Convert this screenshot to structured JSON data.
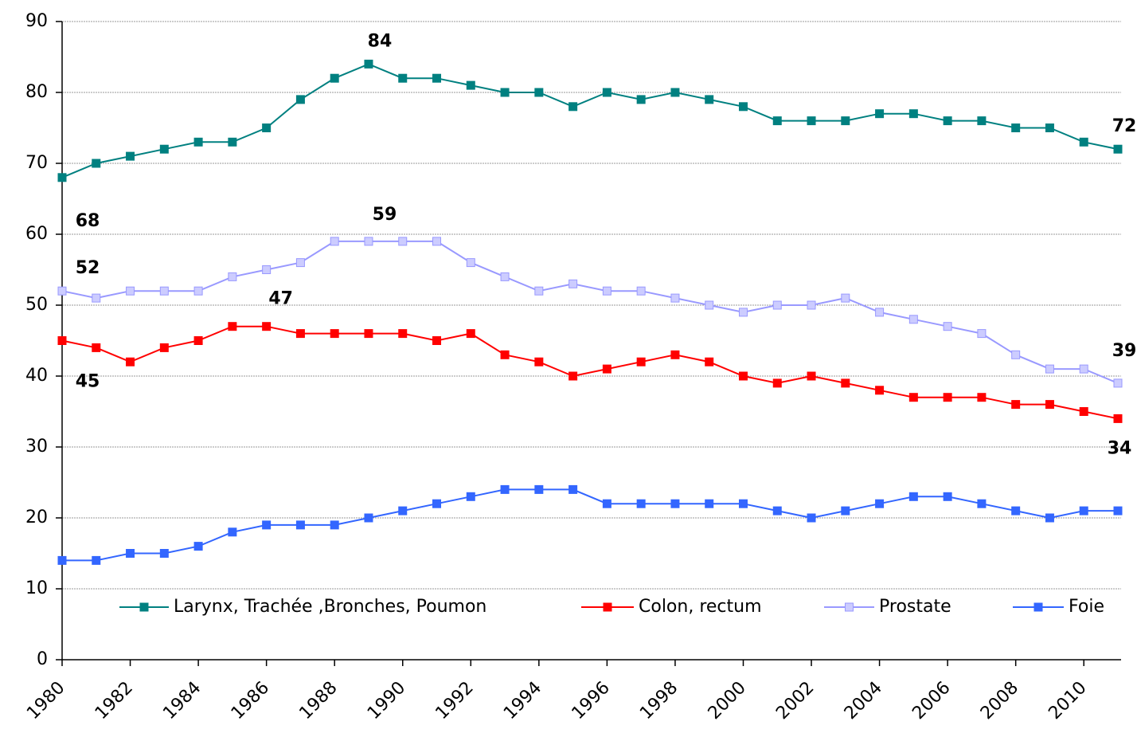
{
  "chart_data": {
    "type": "line",
    "x": [
      1980,
      1981,
      1982,
      1983,
      1984,
      1985,
      1986,
      1987,
      1988,
      1989,
      1990,
      1991,
      1992,
      1993,
      1994,
      1995,
      1996,
      1997,
      1998,
      1999,
      2000,
      2001,
      2002,
      2003,
      2004,
      2005,
      2006,
      2007,
      2008,
      2009,
      2010,
      2011
    ],
    "xlim": [
      1980,
      2011
    ],
    "xticks": [
      1980,
      1982,
      1984,
      1986,
      1988,
      1990,
      1992,
      1994,
      1996,
      1998,
      2000,
      2002,
      2004,
      2006,
      2008,
      2010
    ],
    "ylim": [
      0,
      90
    ],
    "yticks": [
      0,
      10,
      20,
      30,
      40,
      50,
      60,
      70,
      80,
      90
    ],
    "grid": true,
    "legend": "bottom",
    "series": [
      {
        "name": "Larynx, Trachée ,Bronches, Poumon",
        "color": "#008080",
        "values": [
          68,
          70,
          71,
          72,
          73,
          73,
          75,
          79,
          82,
          84,
          82,
          82,
          81,
          80,
          80,
          78,
          80,
          79,
          80,
          79,
          78,
          76,
          76,
          76,
          77,
          77,
          76,
          76,
          75,
          75,
          73,
          72
        ],
        "value_labels": [
          "68",
          null,
          null,
          null,
          null,
          null,
          null,
          null,
          null,
          "84",
          null,
          null,
          null,
          null,
          null,
          null,
          null,
          null,
          null,
          null,
          null,
          null,
          null,
          null,
          null,
          null,
          null,
          null,
          null,
          null,
          null,
          "72"
        ]
      },
      {
        "name": "Colon, rectum",
        "color": "#ff0000",
        "values": [
          45,
          44,
          42,
          44,
          45,
          47,
          47,
          46,
          46,
          46,
          46,
          45,
          46,
          43,
          42,
          40,
          41,
          42,
          43,
          42,
          40,
          39,
          40,
          39,
          38,
          37,
          37,
          37,
          36,
          36,
          35,
          34
        ],
        "value_labels": [
          "45",
          null,
          null,
          null,
          null,
          null,
          "47",
          null,
          null,
          null,
          null,
          null,
          null,
          null,
          null,
          null,
          null,
          null,
          null,
          null,
          null,
          null,
          null,
          null,
          null,
          null,
          null,
          null,
          null,
          null,
          null,
          "34"
        ]
      },
      {
        "name": "Prostate",
        "color": "#9999ff",
        "values": [
          52,
          51,
          52,
          52,
          52,
          54,
          55,
          56,
          59,
          59,
          59,
          59,
          56,
          54,
          52,
          53,
          52,
          52,
          51,
          50,
          49,
          50,
          50,
          51,
          49,
          48,
          47,
          46,
          43,
          41,
          41,
          39
        ],
        "value_labels": [
          "52",
          null,
          null,
          null,
          null,
          null,
          null,
          null,
          null,
          "59",
          null,
          null,
          null,
          null,
          null,
          null,
          null,
          null,
          null,
          null,
          null,
          null,
          null,
          null,
          null,
          null,
          null,
          null,
          null,
          null,
          null,
          "39"
        ]
      },
      {
        "name": "Foie",
        "color": "#3366ff",
        "values": [
          14,
          14,
          15,
          15,
          16,
          18,
          19,
          19,
          19,
          20,
          21,
          22,
          23,
          24,
          24,
          24,
          22,
          22,
          22,
          22,
          22,
          21,
          20,
          21,
          22,
          23,
          23,
          22,
          21,
          20,
          21,
          21
        ],
        "value_labels": [
          null,
          null,
          null,
          null,
          null,
          null,
          null,
          null,
          null,
          null,
          null,
          null,
          null,
          null,
          null,
          null,
          null,
          null,
          null,
          null,
          null,
          null,
          null,
          null,
          null,
          null,
          null,
          null,
          null,
          null,
          null,
          null
        ]
      }
    ]
  }
}
